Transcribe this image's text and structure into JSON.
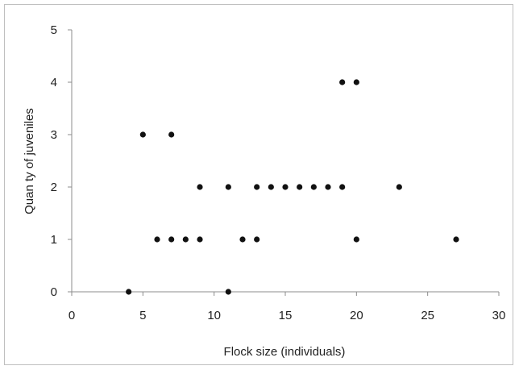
{
  "chart_data": {
    "type": "scatter",
    "title": "",
    "xlabel": "Flock size (individuals)",
    "ylabel": "Quan ty of juveniles",
    "xlim": [
      0,
      30
    ],
    "ylim": [
      0,
      5
    ],
    "x_ticks": [
      "0",
      "5",
      "10",
      "15",
      "20",
      "25",
      "30"
    ],
    "y_ticks": [
      "0",
      "1",
      "2",
      "3",
      "4",
      "5"
    ],
    "grid": false,
    "legend": "none",
    "marker_color": "#111111",
    "axis_color": "#8c8c8c",
    "points": [
      {
        "x": 4,
        "y": 0
      },
      {
        "x": 11,
        "y": 0
      },
      {
        "x": 6,
        "y": 1
      },
      {
        "x": 7,
        "y": 1
      },
      {
        "x": 8,
        "y": 1
      },
      {
        "x": 9,
        "y": 1
      },
      {
        "x": 12,
        "y": 1
      },
      {
        "x": 13,
        "y": 1
      },
      {
        "x": 20,
        "y": 1
      },
      {
        "x": 27,
        "y": 1
      },
      {
        "x": 9,
        "y": 2
      },
      {
        "x": 11,
        "y": 2
      },
      {
        "x": 13,
        "y": 2
      },
      {
        "x": 14,
        "y": 2
      },
      {
        "x": 15,
        "y": 2
      },
      {
        "x": 16,
        "y": 2
      },
      {
        "x": 17,
        "y": 2
      },
      {
        "x": 18,
        "y": 2
      },
      {
        "x": 19,
        "y": 2
      },
      {
        "x": 23,
        "y": 2
      },
      {
        "x": 5,
        "y": 3
      },
      {
        "x": 7,
        "y": 3
      },
      {
        "x": 19,
        "y": 4
      },
      {
        "x": 20,
        "y": 4
      }
    ]
  }
}
